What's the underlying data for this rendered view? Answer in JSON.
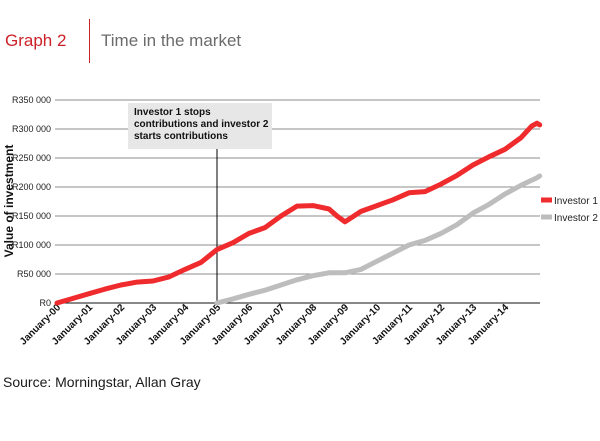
{
  "header": {
    "graph_label": "Graph 2",
    "accent_color": "#cc2229"
  },
  "chart_data": {
    "type": "line",
    "title": "Time in the market",
    "xlabel": "",
    "ylabel": "Value of investment",
    "ylim": [
      0,
      350000
    ],
    "y_ticks": [
      0,
      50000,
      100000,
      150000,
      200000,
      250000,
      300000,
      350000
    ],
    "y_tick_labels": [
      "R0",
      "R50 000",
      "R100 000",
      "R150 000",
      "R200 000",
      "R250 000",
      "R300 000",
      "R350 000"
    ],
    "x_ticks": [
      "2000-01",
      "2001-01",
      "2002-01",
      "2003-01",
      "2004-01",
      "2005-01",
      "2006-01",
      "2007-01",
      "2008-01",
      "2009-01",
      "2010-01",
      "2011-01",
      "2012-01",
      "2013-01",
      "2014-01"
    ],
    "x_tick_labels": [
      "January-00",
      "January-01",
      "January-02",
      "January-03",
      "January-04",
      "January-05",
      "January-06",
      "January-07",
      "January-08",
      "January-09",
      "January-10",
      "January-11",
      "January-12",
      "January-13",
      "January-14"
    ],
    "grid": true,
    "legend": "right",
    "series": [
      {
        "name": "Investor 1",
        "color": "#ef2b2d",
        "x": [
          "2000-01",
          "2000-07",
          "2001-01",
          "2001-07",
          "2002-01",
          "2002-07",
          "2003-01",
          "2003-07",
          "2004-01",
          "2004-07",
          "2005-01",
          "2005-07",
          "2006-01",
          "2006-07",
          "2007-01",
          "2007-07",
          "2008-01",
          "2008-07",
          "2008-10",
          "2009-01",
          "2009-07",
          "2010-01",
          "2010-07",
          "2011-01",
          "2011-07",
          "2012-01",
          "2012-07",
          "2013-01",
          "2013-07",
          "2014-01",
          "2014-07",
          "2014-11",
          "2015-01",
          "2015-02"
        ],
        "y": [
          0,
          8000,
          16000,
          24000,
          31000,
          36000,
          38000,
          45000,
          58000,
          70000,
          92000,
          104000,
          120000,
          130000,
          150000,
          167000,
          168000,
          162000,
          150000,
          140000,
          158000,
          168000,
          178000,
          190000,
          192000,
          205000,
          220000,
          238000,
          252000,
          265000,
          285000,
          305000,
          310000,
          307000
        ]
      },
      {
        "name": "Investor 2",
        "color": "#bdbdbd",
        "x": [
          "2005-01",
          "2005-07",
          "2006-01",
          "2006-07",
          "2007-01",
          "2007-07",
          "2008-01",
          "2008-07",
          "2009-01",
          "2009-07",
          "2010-01",
          "2010-07",
          "2011-01",
          "2011-07",
          "2012-01",
          "2012-07",
          "2013-01",
          "2013-07",
          "2014-01",
          "2014-07",
          "2015-01",
          "2015-02"
        ],
        "y": [
          0,
          7000,
          15000,
          22000,
          31000,
          40000,
          47000,
          52000,
          52000,
          58000,
          72000,
          86000,
          100000,
          108000,
          120000,
          135000,
          155000,
          170000,
          188000,
          203000,
          216000,
          219000
        ]
      }
    ],
    "annotation": {
      "x": "2005-01",
      "lines": [
        "Investor 1 stops",
        "contributions and investor 2",
        "starts contributions"
      ]
    }
  },
  "footer": {
    "source": "Source: Morningstar, Allan Gray"
  }
}
